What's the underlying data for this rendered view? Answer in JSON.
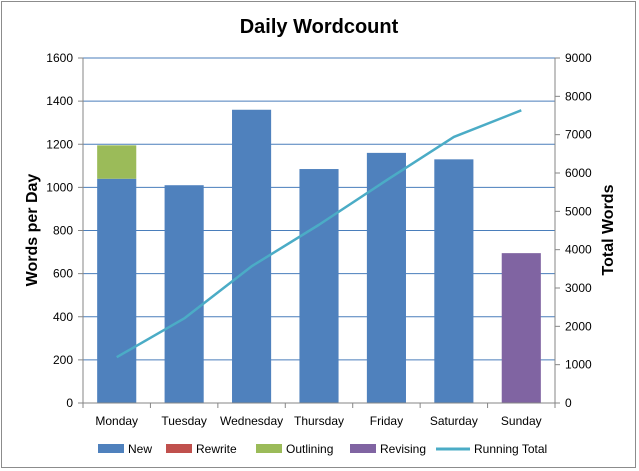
{
  "chart_data": {
    "type": "bar",
    "title": "Daily Wordcount",
    "categories": [
      "Monday",
      "Tuesday",
      "Wednesday",
      "Thursday",
      "Friday",
      "Saturday",
      "Sunday"
    ],
    "ylabel": "Words per Day",
    "y2label": "Total Words",
    "ylim": [
      0,
      1600
    ],
    "yticks": [
      "0",
      "200",
      "400",
      "600",
      "800",
      "1000",
      "1200",
      "1400",
      "1600"
    ],
    "y2lim": [
      0,
      9000
    ],
    "y2ticks": [
      "0",
      "1000",
      "2000",
      "3000",
      "4000",
      "5000",
      "6000",
      "7000",
      "8000",
      "9000"
    ],
    "stacked": true,
    "grid": true,
    "legend_position": "bottom",
    "series": [
      {
        "name": "New",
        "color": "#4f81bd",
        "values": [
          1040,
          1010,
          1360,
          1085,
          1160,
          1130,
          0
        ]
      },
      {
        "name": "Rewrite",
        "color": "#c0504d",
        "values": [
          0,
          0,
          0,
          0,
          0,
          0,
          0
        ]
      },
      {
        "name": "Outlining",
        "color": "#9bbb59",
        "values": [
          155,
          0,
          0,
          0,
          0,
          0,
          0
        ]
      },
      {
        "name": "Revising",
        "color": "#8064a2",
        "values": [
          0,
          0,
          0,
          0,
          0,
          0,
          695
        ]
      }
    ],
    "line_series": {
      "name": "Running Total",
      "color": "#4bacc6",
      "axis": "right",
      "values": [
        1195,
        2205,
        3565,
        4650,
        5810,
        6940,
        7635
      ]
    }
  }
}
